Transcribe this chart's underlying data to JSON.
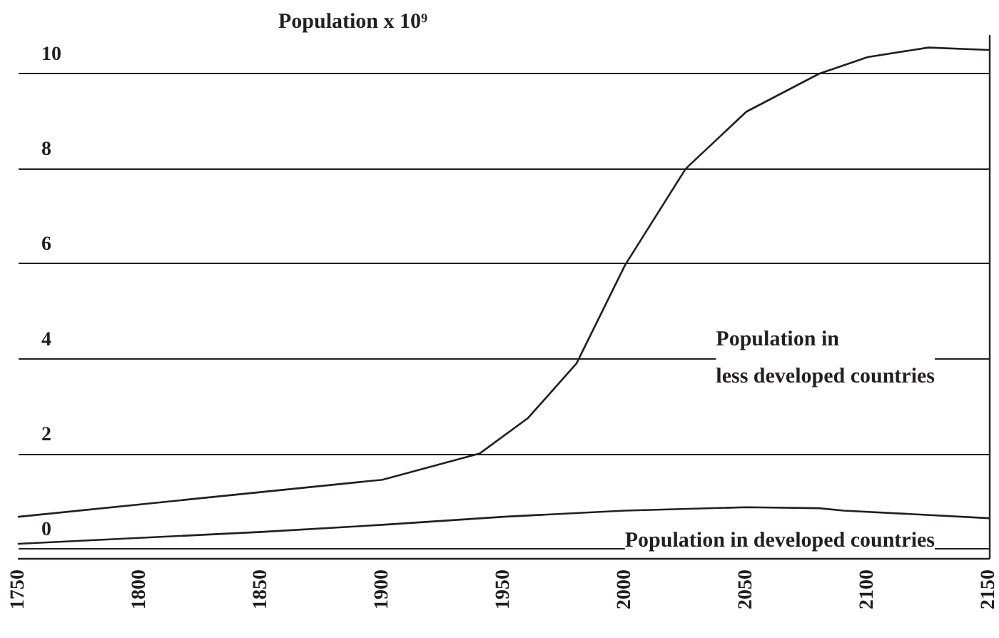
{
  "chart_data": {
    "type": "line",
    "ylabel": "Population x 10⁹",
    "x": [
      1750,
      1900,
      1940,
      1960,
      1980,
      2000,
      2025,
      2050,
      2080,
      2100,
      2125,
      2150
    ],
    "series": [
      {
        "color": "#231f20",
        "values": [
          0.67,
          1.45,
          2.0,
          2.75,
          3.9,
          5.97,
          8.0,
          9.2,
          10.0,
          10.35,
          10.55,
          10.5
        ]
      },
      {
        "color": "#231f20",
        "x": [
          1750,
          1850,
          1900,
          1950,
          2000,
          2050,
          2080,
          2090,
          2150
        ],
        "values": [
          0.1,
          0.35,
          0.5,
          0.67,
          0.8,
          0.87,
          0.85,
          0.8,
          0.64
        ]
      }
    ],
    "annotations": [
      "Population in\nless developed countries",
      "Population in developed countries"
    ],
    "xlim": [
      1750,
      2150
    ],
    "xticks": [
      1750,
      1800,
      1850,
      1900,
      1950,
      2000,
      2050,
      2100,
      2150
    ],
    "ylim": [
      -0.2,
      10.8
    ],
    "yticks": [
      0,
      2,
      4,
      6,
      8,
      10
    ],
    "grid": "y",
    "marker": "none",
    "line_style": "solid"
  }
}
